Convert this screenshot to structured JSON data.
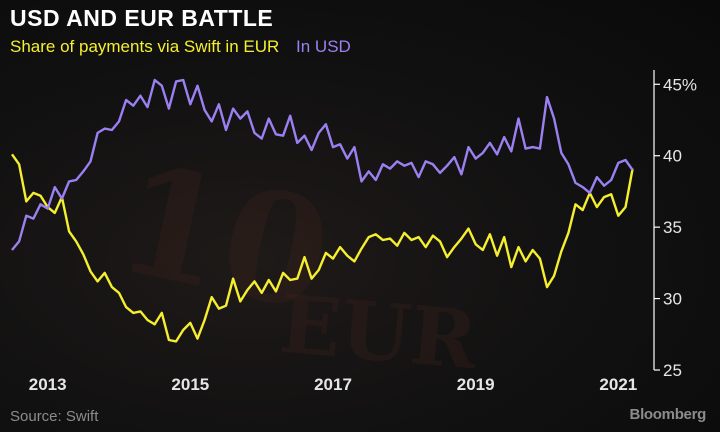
{
  "title": "USD AND EUR BATTLE",
  "subtitle": "Share of payments via Swift in EUR",
  "legend": {
    "eur": "Share of payments via Swift in EUR",
    "usd": "In USD"
  },
  "source": "Source: Swift",
  "brand": "Bloomberg",
  "watermark": {
    "line1": "10",
    "line2": "EUR"
  },
  "colors": {
    "eur": "#f5ef2f",
    "usd": "#9b80f2"
  },
  "chart_data": {
    "type": "line",
    "title": "USD AND EUR BATTLE",
    "subtitle": "Share of payments via Swift in EUR",
    "xlim": [
      2012.5,
      2021.5
    ],
    "ylim": [
      25,
      46
    ],
    "ytick_values": [
      25,
      30,
      35,
      40,
      45
    ],
    "ytick_labels": [
      "25",
      "30",
      "35",
      "40",
      "45%"
    ],
    "xtick_values": [
      2013,
      2015,
      2017,
      2019,
      2021
    ],
    "xtick_labels": [
      "2013",
      "2015",
      "2017",
      "2019",
      "2021"
    ],
    "grid": false,
    "series": [
      {
        "name": "Share of payments via Swift in EUR",
        "color": "#f5ef2f",
        "x": [
          2012.5,
          2012.6,
          2012.7,
          2012.8,
          2012.9,
          2013.0,
          2013.1,
          2013.2,
          2013.3,
          2013.4,
          2013.5,
          2013.6,
          2013.7,
          2013.8,
          2013.9,
          2014.0,
          2014.1,
          2014.2,
          2014.3,
          2014.4,
          2014.5,
          2014.6,
          2014.7,
          2014.8,
          2014.9,
          2015.0,
          2015.1,
          2015.2,
          2015.3,
          2015.4,
          2015.5,
          2015.6,
          2015.7,
          2015.8,
          2015.9,
          2016.0,
          2016.1,
          2016.2,
          2016.3,
          2016.4,
          2016.5,
          2016.6,
          2016.7,
          2016.8,
          2016.9,
          2017.0,
          2017.1,
          2017.2,
          2017.3,
          2017.4,
          2017.5,
          2017.6,
          2017.7,
          2017.8,
          2017.9,
          2018.0,
          2018.1,
          2018.2,
          2018.3,
          2018.4,
          2018.5,
          2018.6,
          2018.7,
          2018.8,
          2018.9,
          2019.0,
          2019.1,
          2019.2,
          2019.3,
          2019.4,
          2019.5,
          2019.6,
          2019.7,
          2019.8,
          2019.9,
          2020.0,
          2020.1,
          2020.2,
          2020.3,
          2020.4,
          2020.5,
          2020.6,
          2020.7,
          2020.8,
          2020.9,
          2021.0,
          2021.1,
          2021.2
        ],
        "values": [
          40.1,
          39.4,
          36.8,
          37.4,
          37.2,
          36.4,
          36.0,
          37.1,
          34.7,
          34.0,
          33.1,
          31.9,
          31.2,
          31.8,
          30.8,
          30.4,
          29.4,
          29.0,
          29.1,
          28.5,
          28.2,
          29.0,
          27.1,
          27.0,
          27.8,
          28.3,
          27.2,
          28.5,
          30.1,
          29.3,
          29.5,
          31.4,
          29.8,
          30.6,
          31.2,
          30.4,
          31.3,
          30.5,
          31.8,
          31.3,
          31.4,
          32.9,
          31.4,
          32.0,
          33.2,
          32.8,
          33.6,
          33.0,
          32.6,
          33.5,
          34.3,
          34.5,
          34.1,
          34.2,
          33.7,
          34.6,
          34.1,
          34.3,
          33.6,
          34.4,
          34.0,
          32.9,
          33.6,
          34.2,
          34.9,
          33.8,
          33.4,
          34.5,
          33.0,
          34.3,
          32.2,
          33.6,
          32.6,
          33.4,
          32.8,
          30.8,
          31.6,
          33.3,
          34.6,
          36.6,
          36.2,
          37.4,
          36.4,
          37.1,
          37.3,
          35.8,
          36.4,
          39.1
        ]
      },
      {
        "name": "In USD",
        "color": "#9b80f2",
        "x": [
          2012.5,
          2012.6,
          2012.7,
          2012.8,
          2012.9,
          2013.0,
          2013.1,
          2013.2,
          2013.3,
          2013.4,
          2013.5,
          2013.6,
          2013.7,
          2013.8,
          2013.9,
          2014.0,
          2014.1,
          2014.2,
          2014.3,
          2014.4,
          2014.5,
          2014.6,
          2014.7,
          2014.8,
          2014.9,
          2015.0,
          2015.1,
          2015.2,
          2015.3,
          2015.4,
          2015.5,
          2015.6,
          2015.7,
          2015.8,
          2015.9,
          2016.0,
          2016.1,
          2016.2,
          2016.3,
          2016.4,
          2016.5,
          2016.6,
          2016.7,
          2016.8,
          2016.9,
          2017.0,
          2017.1,
          2017.2,
          2017.3,
          2017.4,
          2017.5,
          2017.6,
          2017.7,
          2017.8,
          2017.9,
          2018.0,
          2018.1,
          2018.2,
          2018.3,
          2018.4,
          2018.5,
          2018.6,
          2018.7,
          2018.8,
          2018.9,
          2019.0,
          2019.1,
          2019.2,
          2019.3,
          2019.4,
          2019.5,
          2019.6,
          2019.7,
          2019.8,
          2019.9,
          2020.0,
          2020.1,
          2020.2,
          2020.3,
          2020.4,
          2020.5,
          2020.6,
          2020.7,
          2020.8,
          2020.9,
          2021.0,
          2021.1,
          2021.2
        ],
        "values": [
          33.4,
          34.0,
          35.8,
          35.6,
          36.6,
          36.3,
          37.8,
          37.0,
          38.2,
          38.3,
          38.9,
          39.6,
          41.6,
          41.9,
          41.8,
          42.4,
          43.9,
          43.5,
          44.2,
          43.4,
          45.3,
          44.9,
          43.3,
          45.2,
          45.3,
          43.6,
          44.9,
          43.2,
          42.4,
          43.6,
          41.8,
          43.3,
          42.6,
          43.1,
          41.6,
          41.2,
          42.6,
          41.5,
          41.4,
          42.8,
          40.9,
          41.4,
          40.4,
          41.6,
          42.2,
          40.6,
          40.8,
          39.8,
          40.6,
          38.2,
          38.9,
          38.3,
          39.4,
          39.1,
          39.6,
          39.3,
          39.5,
          38.5,
          39.6,
          39.4,
          38.8,
          39.3,
          39.9,
          38.7,
          40.6,
          39.8,
          40.2,
          40.9,
          40.1,
          41.3,
          40.3,
          42.6,
          40.5,
          40.6,
          40.5,
          44.1,
          42.6,
          40.2,
          39.4,
          38.1,
          37.8,
          37.4,
          38.5,
          37.9,
          38.3,
          39.5,
          39.7,
          39.0
        ]
      }
    ]
  }
}
